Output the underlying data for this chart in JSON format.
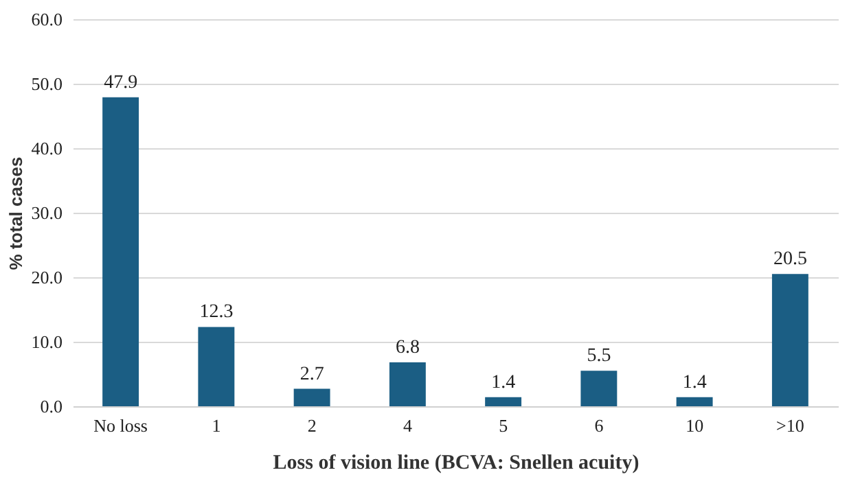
{
  "chart_data": {
    "type": "bar",
    "xlabel": "Loss of vision line (BCVA: Snellen acuity)",
    "ylabel": "% total cases",
    "categories": [
      "No loss",
      "1",
      "2",
      "4",
      "5",
      "6",
      "10",
      ">10"
    ],
    "values": [
      47.9,
      12.3,
      2.7,
      6.8,
      1.4,
      5.5,
      1.4,
      20.5
    ],
    "color": "#1b5e84",
    "ylim": [
      0,
      60
    ],
    "yticks": [
      {
        "value": 0,
        "label": "0.0"
      },
      {
        "value": 10,
        "label": "10.0"
      },
      {
        "value": 20,
        "label": "20.0"
      },
      {
        "value": 30,
        "label": "30.0"
      },
      {
        "value": 40,
        "label": "40.0"
      },
      {
        "value": 50,
        "label": "50.0"
      },
      {
        "value": 60,
        "label": "60.0"
      }
    ],
    "grid": "y",
    "data_labels": true
  }
}
